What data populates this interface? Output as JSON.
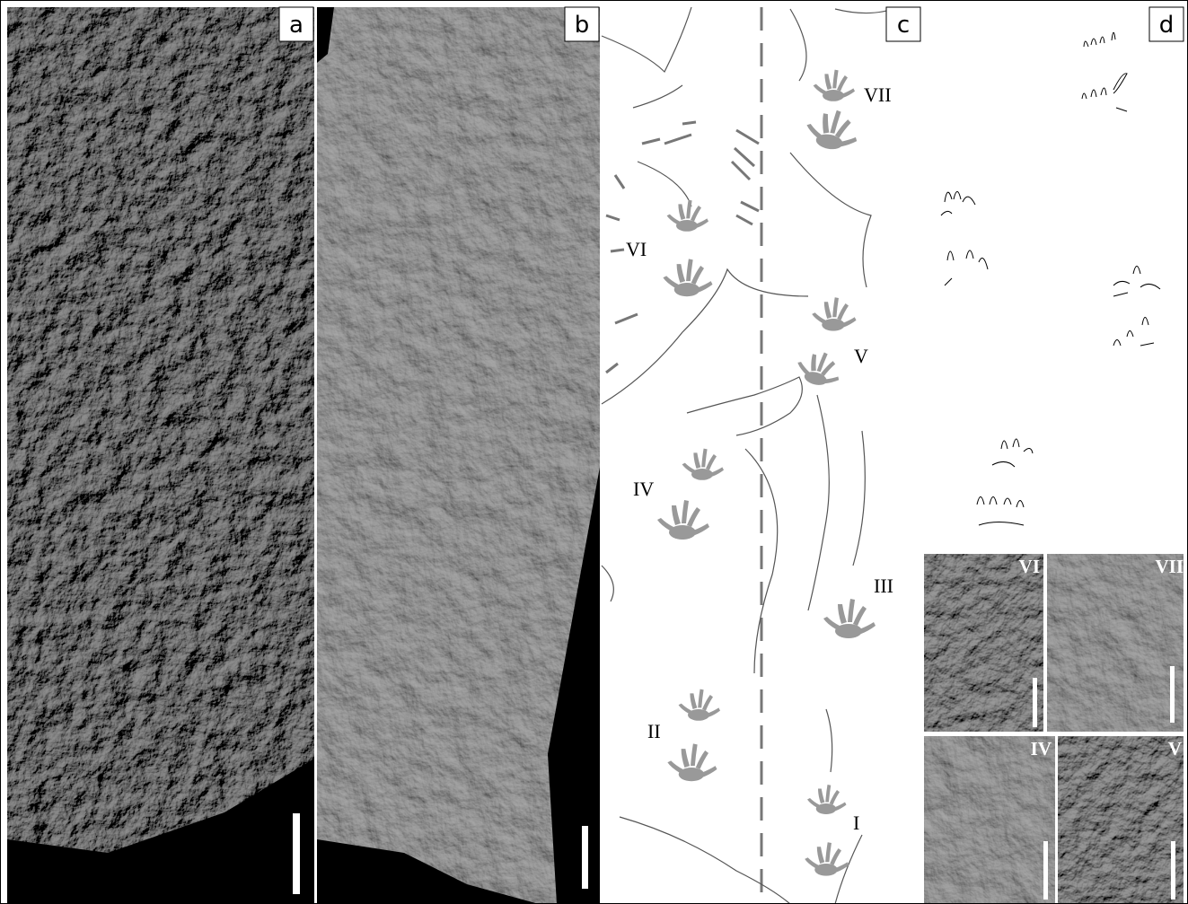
{
  "panels": [
    {
      "label": "a"
    },
    {
      "label": "b"
    },
    {
      "label": "c",
      "trackway_labels": [
        "VII",
        "VI",
        "V",
        "IV",
        "III",
        "II",
        "I"
      ]
    },
    {
      "label": "d",
      "inset_labels": [
        "VI",
        "VII",
        "IV",
        "V"
      ]
    }
  ]
}
